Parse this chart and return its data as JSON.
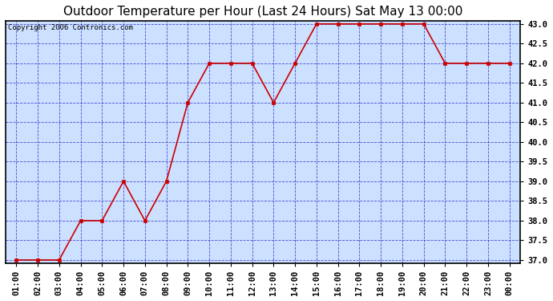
{
  "title": "Outdoor Temperature per Hour (Last 24 Hours) Sat May 13 00:00",
  "copyright_text": "Copyright 2006 Contronics.com",
  "x_labels": [
    "01:00",
    "02:00",
    "03:00",
    "04:00",
    "05:00",
    "06:00",
    "07:00",
    "08:00",
    "09:00",
    "10:00",
    "11:00",
    "12:00",
    "13:00",
    "14:00",
    "15:00",
    "16:00",
    "17:00",
    "18:00",
    "19:00",
    "20:00",
    "21:00",
    "22:00",
    "23:00",
    "00:00"
  ],
  "y_values": [
    37.0,
    37.0,
    37.0,
    38.0,
    38.0,
    39.0,
    38.0,
    39.0,
    41.0,
    42.0,
    42.0,
    42.0,
    41.0,
    42.0,
    43.0,
    43.0,
    43.0,
    43.0,
    43.0,
    43.0,
    42.0,
    42.0,
    42.0,
    42.0
  ],
  "y_min": 37.0,
  "y_max": 43.0,
  "y_tick_step": 0.5,
  "line_color": "#cc0000",
  "marker": "s",
  "marker_size": 2.5,
  "fig_bg_color": "#ffffff",
  "plot_bg_color": "#cce0ff",
  "grid_color": "#3333cc",
  "grid_linestyle": "--",
  "grid_linewidth": 0.6,
  "border_color": "#000000",
  "title_fontsize": 11,
  "copyright_fontsize": 6.5,
  "tick_fontsize": 7.5,
  "ytick_fontsize": 7.5
}
